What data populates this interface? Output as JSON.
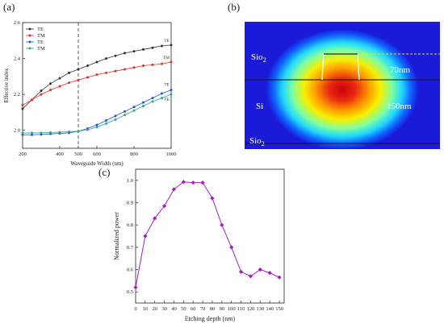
{
  "labels": {
    "a": "(a)",
    "b": "(b)",
    "c": "(c)"
  },
  "panel_a": {
    "chart_data": {
      "type": "line",
      "xlabel": "Waveguide Width (nm)",
      "ylabel": "Effective index",
      "xlim": [
        200,
        1000
      ],
      "ylim": [
        1.9,
        2.6
      ],
      "xticks": [
        "200",
        "400",
        "500",
        "600",
        "800",
        "1000"
      ],
      "yticks": [
        "2.0",
        "2.2",
        "2.4",
        "2.6"
      ],
      "legend_position": "top-left",
      "annotations": [
        "TE",
        "TM",
        "TE",
        "TE"
      ],
      "vline_x": 500,
      "series": [
        {
          "name": "TE",
          "color": "#333333",
          "x": [
            200,
            250,
            300,
            350,
            400,
            450,
            500,
            550,
            600,
            650,
            700,
            750,
            800,
            850,
            900,
            950,
            1000
          ],
          "y": [
            2.12,
            2.17,
            2.22,
            2.26,
            2.29,
            2.32,
            2.34,
            2.36,
            2.38,
            2.4,
            2.415,
            2.43,
            2.44,
            2.45,
            2.46,
            2.47,
            2.475
          ]
        },
        {
          "name": "TM",
          "color": "#e0302a",
          "x": [
            200,
            250,
            300,
            350,
            400,
            450,
            500,
            550,
            600,
            650,
            700,
            750,
            800,
            850,
            900,
            950,
            1000
          ],
          "y": [
            2.14,
            2.17,
            2.2,
            2.225,
            2.245,
            2.265,
            2.28,
            2.295,
            2.31,
            2.32,
            2.33,
            2.34,
            2.35,
            2.36,
            2.365,
            2.37,
            2.38
          ]
        },
        {
          "name": "TE",
          "color": "#2255cc",
          "x": [
            200,
            250,
            300,
            350,
            400,
            450,
            500,
            550,
            600,
            650,
            700,
            750,
            800,
            850,
            900,
            950,
            1000
          ],
          "y": [
            1.975,
            1.975,
            1.977,
            1.98,
            1.983,
            1.986,
            1.995,
            2.01,
            2.03,
            2.055,
            2.08,
            2.105,
            2.13,
            2.155,
            2.18,
            2.205,
            2.225
          ]
        },
        {
          "name": "TM",
          "color": "#2aa88a",
          "x": [
            200,
            250,
            300,
            350,
            400,
            450,
            500,
            550,
            600,
            650,
            700,
            750,
            800,
            850,
            900,
            950,
            1000
          ],
          "y": [
            1.985,
            1.985,
            1.986,
            1.988,
            1.99,
            1.992,
            1.995,
            2.003,
            2.018,
            2.038,
            2.06,
            2.085,
            2.11,
            2.135,
            2.16,
            2.18,
            2.2
          ]
        }
      ]
    }
  },
  "panel_b": {
    "labels": {
      "sio2_top": "Sio",
      "sio2_top_sub": "2",
      "si": "Si",
      "sio2_bottom": "Sio",
      "sio2_bottom_sub": "2",
      "etch_depth": "70nm",
      "thickness": "150nm"
    }
  },
  "panel_c": {
    "chart_data": {
      "type": "line",
      "xlabel": "Etching depth (nm)",
      "ylabel": "Normalized power",
      "xlim": [
        0,
        155
      ],
      "ylim": [
        0.45,
        1.05
      ],
      "xticks": [
        "0",
        "10",
        "20",
        "30",
        "40",
        "50",
        "60",
        "70",
        "80",
        "90",
        "100",
        "110",
        "120",
        "130",
        "140",
        "150"
      ],
      "yticks": [
        "0.5",
        "0.6",
        "0.7",
        "0.8",
        "0.9",
        "1.0"
      ],
      "color": "#a020c0",
      "x": [
        0,
        10,
        20,
        30,
        40,
        50,
        60,
        70,
        80,
        90,
        100,
        110,
        120,
        130,
        140,
        150
      ],
      "y": [
        0.52,
        0.75,
        0.83,
        0.885,
        0.96,
        0.993,
        0.99,
        0.99,
        0.92,
        0.8,
        0.7,
        0.59,
        0.57,
        0.6,
        0.585,
        0.565
      ]
    }
  }
}
